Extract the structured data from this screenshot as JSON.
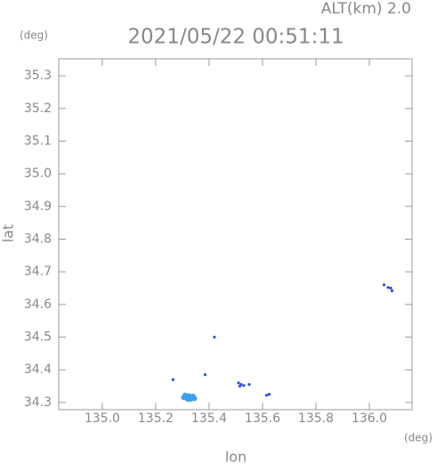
{
  "chart_data": {
    "type": "scatter",
    "title": "2021/05/22 00:51:11",
    "altitude_label": "ALT(km) 2.0",
    "x_unit": "(deg)",
    "y_unit": "(deg)",
    "xlabel": "lon",
    "ylabel": "lat",
    "xlim": [
      134.837,
      136.16
    ],
    "ylim": [
      34.278,
      35.352
    ],
    "xticks": [
      {
        "value": 135.0,
        "label": "135.0"
      },
      135.2,
      135.4,
      135.6,
      135.8,
      {
        "value": 136.0,
        "label": "136.0"
      }
    ],
    "yticks": [
      34.3,
      34.4,
      34.5,
      34.6,
      34.7,
      34.8,
      34.9,
      {
        "value": 35.0,
        "label": "35.0"
      },
      35.1,
      35.2,
      35.3
    ],
    "series": [
      {
        "color": "#2a4fe0",
        "x": [
          135.265,
          135.42,
          135.385,
          135.51,
          135.515,
          135.52,
          135.53,
          135.55,
          135.615,
          135.625,
          136.055,
          136.07,
          136.08,
          136.085
        ],
        "y": [
          34.37,
          34.5,
          34.385,
          34.36,
          34.35,
          34.355,
          34.352,
          34.355,
          34.322,
          34.325,
          34.66,
          34.652,
          34.65,
          34.642
        ]
      },
      {
        "color": "#3d9ff0",
        "x": [
          135.305,
          135.315,
          135.325,
          135.335,
          135.345,
          135.32,
          135.33,
          135.31,
          135.34
        ],
        "y": [
          34.315,
          34.318,
          34.32,
          34.316,
          34.312,
          34.31,
          34.31,
          34.322,
          34.319
        ]
      }
    ]
  }
}
